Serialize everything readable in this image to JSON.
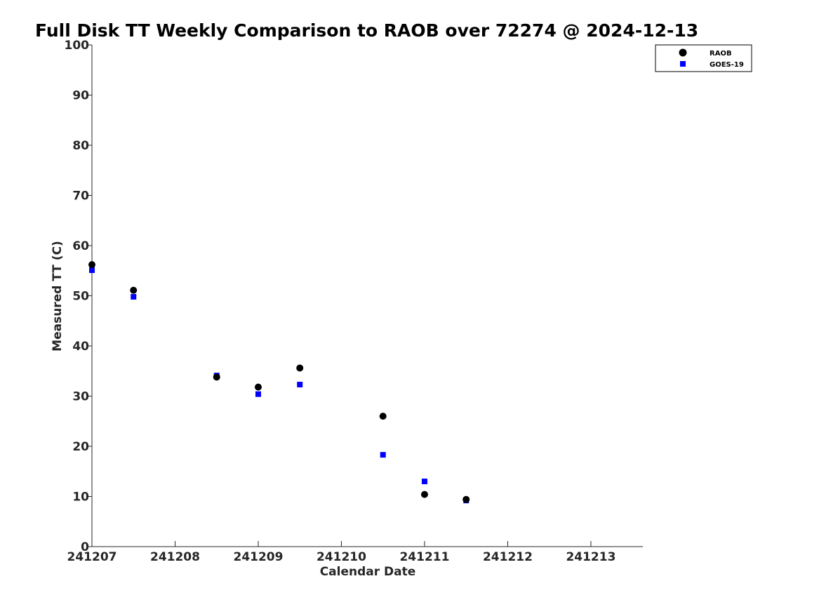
{
  "chart_data": {
    "type": "scatter",
    "title": "Full Disk TT Weekly Comparison to RAOB over 72274 @ 2024-12-13",
    "xlabel": "Calendar Date",
    "ylabel": "Measured TT (C)",
    "xlim": [
      "2024-12-07",
      "2024-12-13T15:00"
    ],
    "ylim": [
      0,
      100
    ],
    "x_ticks": [
      "241207",
      "241208",
      "241209",
      "241210",
      "241211",
      "241212",
      "241213"
    ],
    "y_ticks": [
      "0",
      "10",
      "20",
      "30",
      "40",
      "50",
      "60",
      "70",
      "80",
      "90",
      "100"
    ],
    "grid": false,
    "legend_position": "top-right",
    "series": [
      {
        "name": "RAOB",
        "marker": "circle",
        "color": "#000000",
        "points": [
          {
            "x": "2024-12-07T00:00",
            "y": 56.2
          },
          {
            "x": "2024-12-07T12:00",
            "y": 51.1
          },
          {
            "x": "2024-12-08T12:00",
            "y": 33.8
          },
          {
            "x": "2024-12-09T00:00",
            "y": 31.8
          },
          {
            "x": "2024-12-09T12:00",
            "y": 35.6
          },
          {
            "x": "2024-12-10T12:00",
            "y": 26.0
          },
          {
            "x": "2024-12-11T00:00",
            "y": 10.4
          },
          {
            "x": "2024-12-11T12:00",
            "y": 9.4
          }
        ]
      },
      {
        "name": "GOES-19",
        "marker": "square",
        "color": "#0000ff",
        "points": [
          {
            "x": "2024-12-07T00:00",
            "y": 55.1
          },
          {
            "x": "2024-12-07T12:00",
            "y": 49.8
          },
          {
            "x": "2024-12-08T12:00",
            "y": 34.1
          },
          {
            "x": "2024-12-09T00:00",
            "y": 30.4
          },
          {
            "x": "2024-12-09T12:00",
            "y": 32.3
          },
          {
            "x": "2024-12-10T12:00",
            "y": 18.3
          },
          {
            "x": "2024-12-11T00:00",
            "y": 13.0
          },
          {
            "x": "2024-12-11T12:00",
            "y": 9.2
          }
        ]
      }
    ]
  }
}
